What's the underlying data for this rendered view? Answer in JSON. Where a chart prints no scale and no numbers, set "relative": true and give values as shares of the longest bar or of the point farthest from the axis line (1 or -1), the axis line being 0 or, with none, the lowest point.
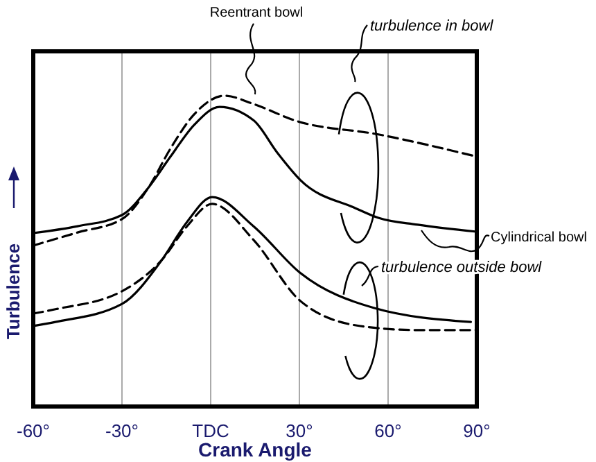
{
  "chart_data": {
    "type": "line",
    "relative": true,
    "xlabel": "Crank Angle",
    "ylabel": "Turbulence",
    "xlim": [
      -60,
      90
    ],
    "xticks": [
      {
        "value": -60,
        "label": "-60°"
      },
      {
        "value": -30,
        "label": "-30°"
      },
      {
        "value": 0,
        "label": "TDC"
      },
      {
        "value": 30,
        "label": "30°"
      },
      {
        "value": 60,
        "label": "60°"
      },
      {
        "value": 90,
        "label": "90°"
      }
    ],
    "grid": "x",
    "tick_labels": "x",
    "series": [
      {
        "name": "Reentrant bowl",
        "color": "#000000",
        "line_style": "dashed",
        "x": [
          -60,
          -45,
          -30,
          -21,
          -13.6,
          -5.6,
          4.7,
          14.6,
          28.6,
          57,
          90
        ],
        "values": [
          0.518,
          0.56,
          0.603,
          0.705,
          0.83,
          0.94,
          1,
          0.973,
          0.92,
          0.875,
          0.804
        ]
      },
      {
        "name": "Cylindrical bowl",
        "color": "#000000",
        "line_style": "solid",
        "x": [
          -60,
          -45,
          -30,
          -21,
          -13.6,
          -5.6,
          3,
          14.6,
          22.5,
          30.4,
          49,
          56.7,
          70,
          90
        ],
        "values": [
          0.558,
          0.58,
          0.616,
          0.705,
          0.804,
          0.906,
          0.964,
          0.92,
          0.817,
          0.728,
          0.638,
          0.607,
          0.585,
          0.5625
        ]
      },
      {
        "color": "#000000",
        "line_style": "dashed",
        "x": [
          -60,
          -52.5,
          -30,
          -16.4,
          -8,
          0.5,
          14.5,
          30.4,
          50.6,
          70,
          90
        ],
        "values": [
          0.299,
          0.313,
          0.371,
          0.473,
          0.58,
          0.652,
          0.536,
          0.339,
          0.259,
          0.246,
          0.246
        ]
      },
      {
        "color": "#000000",
        "line_style": "solid",
        "x": [
          -60,
          -52.5,
          -30,
          -16.4,
          -8,
          0.5,
          14.5,
          30.4,
          55.3,
          88
        ],
        "values": [
          0.259,
          0.272,
          0.33,
          0.473,
          0.594,
          0.674,
          0.58,
          0.429,
          0.317,
          0.272
        ]
      }
    ],
    "annotations": [
      "turbulence in bowl",
      "turbulence outside bowl"
    ]
  }
}
